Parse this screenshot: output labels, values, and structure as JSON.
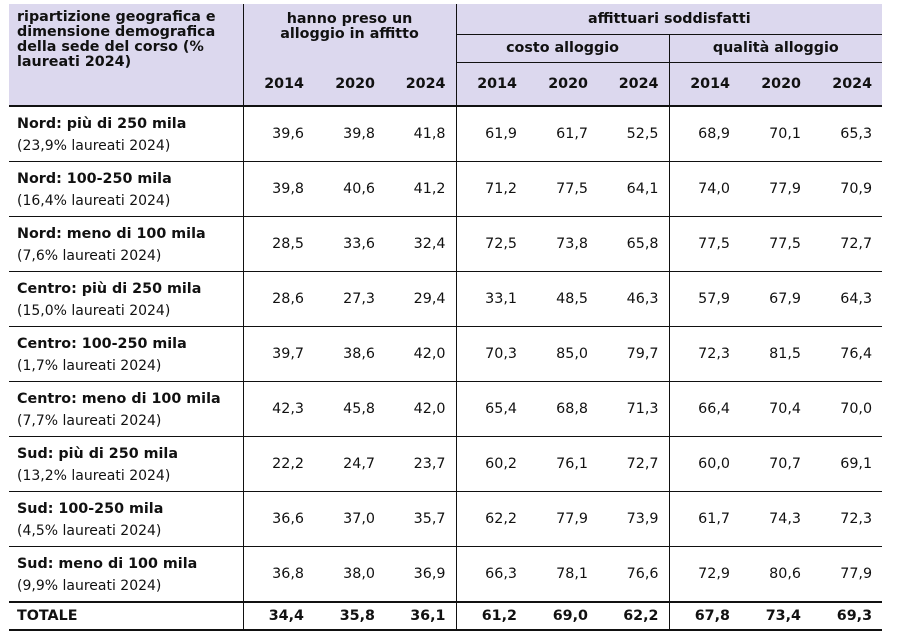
{
  "header": {
    "first_col": "ripartizione geografica e dimensione demografica della sede del corso (% laureati 2024)",
    "group_a": "hanno preso un alloggio in affitto",
    "group_b": "affittuari soddisfatti",
    "sub_b1": "costo alloggio",
    "sub_b2": "qualità alloggio",
    "years": [
      "2014",
      "2020",
      "2024",
      "2014",
      "2020",
      "2024",
      "2014",
      "2020",
      "2024"
    ]
  },
  "rows": [
    {
      "name": "Nord: più di 250 mila",
      "sub": "(23,9% laureati 2024)",
      "values": [
        "39,6",
        "39,8",
        "41,8",
        "61,9",
        "61,7",
        "52,5",
        "68,9",
        "70,1",
        "65,3"
      ]
    },
    {
      "name": "Nord: 100-250 mila",
      "sub": "(16,4% laureati 2024)",
      "values": [
        "39,8",
        "40,6",
        "41,2",
        "71,2",
        "77,5",
        "64,1",
        "74,0",
        "77,9",
        "70,9"
      ]
    },
    {
      "name": "Nord: meno di 100 mila",
      "sub": "(7,6% laureati 2024)",
      "values": [
        "28,5",
        "33,6",
        "32,4",
        "72,5",
        "73,8",
        "65,8",
        "77,5",
        "77,5",
        "72,7"
      ]
    },
    {
      "name": "Centro: più di 250 mila",
      "sub": "(15,0% laureati 2024)",
      "values": [
        "28,6",
        "27,3",
        "29,4",
        "33,1",
        "48,5",
        "46,3",
        "57,9",
        "67,9",
        "64,3"
      ]
    },
    {
      "name": "Centro: 100-250 mila",
      "sub": "(1,7% laureati 2024)",
      "values": [
        "39,7",
        "38,6",
        "42,0",
        "70,3",
        "85,0",
        "79,7",
        "72,3",
        "81,5",
        "76,4"
      ]
    },
    {
      "name": "Centro: meno di 100 mila",
      "sub": "(7,7% laureati 2024)",
      "values": [
        "42,3",
        "45,8",
        "42,0",
        "65,4",
        "68,8",
        "71,3",
        "66,4",
        "70,4",
        "70,0"
      ]
    },
    {
      "name": "Sud: più di 250 mila",
      "sub": "(13,2% laureati 2024)",
      "values": [
        "22,2",
        "24,7",
        "23,7",
        "60,2",
        "76,1",
        "72,7",
        "60,0",
        "70,7",
        "69,1"
      ]
    },
    {
      "name": "Sud: 100-250 mila",
      "sub": "(4,5% laureati 2024)",
      "values": [
        "36,6",
        "37,0",
        "35,7",
        "62,2",
        "77,9",
        "73,9",
        "61,7",
        "74,3",
        "72,3"
      ]
    },
    {
      "name": "Sud: meno di 100 mila",
      "sub": "(9,9% laureati 2024)",
      "values": [
        "36,8",
        "38,0",
        "36,9",
        "66,3",
        "78,1",
        "76,6",
        "72,9",
        "80,6",
        "77,9"
      ]
    }
  ],
  "total": {
    "name": "TOTALE",
    "values": [
      "34,4",
      "35,8",
      "36,1",
      "61,2",
      "69,0",
      "62,2",
      "67,8",
      "73,4",
      "69,3"
    ]
  }
}
